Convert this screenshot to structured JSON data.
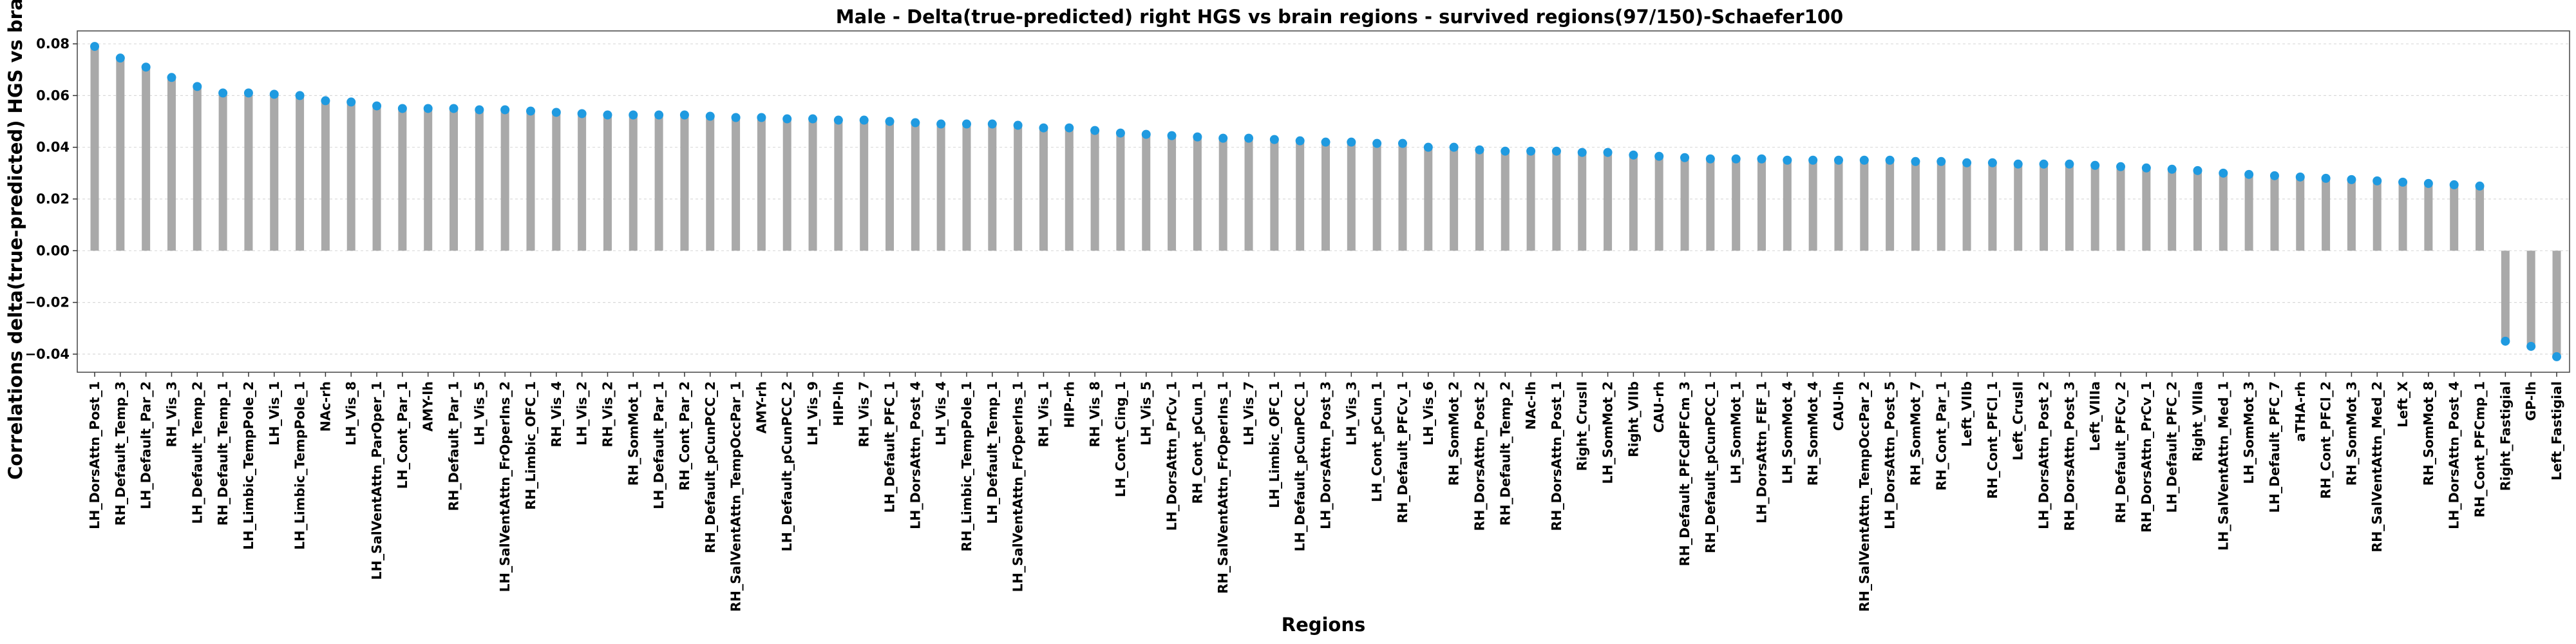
{
  "chart_data": {
    "type": "bar",
    "title": "Male - Delta(true-predicted) right HGS vs brain regions - survived regions(97/150)-Schaefer100",
    "xlabel": "Regions",
    "ylabel": "Correlations delta(true-predicted) HGS vs brain",
    "ylim": [
      -0.047,
      0.085
    ],
    "yticks": [
      -0.04,
      -0.02,
      0.0,
      0.02,
      0.04,
      0.06,
      0.08
    ],
    "ytick_labels": [
      "−0.04",
      "−0.02",
      "0.00",
      "0.02",
      "0.04",
      "0.06",
      "0.08"
    ],
    "grid": true,
    "bar_color": "#a9a9a9",
    "marker_color": "#1f9ae0",
    "categories": [
      "LH_DorsAttn_Post_1",
      "RH_Default_Temp_3",
      "LH_Default_Par_2",
      "RH_Vis_3",
      "LH_Default_Temp_2",
      "RH_Default_Temp_1",
      "LH_Limbic_TempPole_2",
      "LH_Vis_1",
      "LH_Limbic_TempPole_1",
      "NAc-rh",
      "LH_Vis_8",
      "LH_SalVentAttn_ParOper_1",
      "LH_Cont_Par_1",
      "AMY-lh",
      "RH_Default_Par_1",
      "LH_Vis_5",
      "LH_SalVentAttn_FrOperIns_2",
      "RH_Limbic_OFC_1",
      "RH_Vis_4",
      "LH_Vis_2",
      "RH_Vis_2",
      "RH_SomMot_1",
      "LH_Default_Par_1",
      "RH_Cont_Par_2",
      "RH_Default_pCunPCC_2",
      "RH_SalVentAttn_TempOccPar_1",
      "AMY-rh",
      "LH_Default_pCunPCC_2",
      "LH_Vis_9",
      "HIP-lh",
      "RH_Vis_7",
      "LH_Default_PFC_1",
      "LH_DorsAttn_Post_4",
      "LH_Vis_4",
      "RH_Limbic_TempPole_1",
      "LH_Default_Temp_1",
      "LH_SalVentAttn_FrOperIns_1",
      "RH_Vis_1",
      "HIP-rh",
      "RH_Vis_8",
      "LH_Cont_Cing_1",
      "LH_Vis_5",
      "LH_DorsAttn_PrCv_1",
      "RH_Cont_pCun_1",
      "RH_SalVentAttn_FrOperIns_1",
      "LH_Vis_7",
      "LH_Limbic_OFC_1",
      "LH_Default_pCunPCC_1",
      "LH_DorsAttn_Post_3",
      "LH_Vis_3",
      "LH_Cont_pCun_1",
      "RH_Default_PFCv_1",
      "LH_Vis_6",
      "RH_SomMot_2",
      "RH_DorsAttn_Post_2",
      "RH_Default_Temp_2",
      "NAc-lh",
      "RH_DorsAttn_Post_1",
      "Right_CrusII",
      "LH_SomMot_2",
      "Right_VIIb",
      "CAU-rh",
      "RH_Default_PFCdPFCm_3",
      "RH_Default_pCunPCC_1",
      "LH_SomMot_1",
      "LH_DorsAttn_FEF_1",
      "LH_SomMot_4",
      "RH_SomMot_4",
      "CAU-lh",
      "RH_SalVentAttn_TempOccPar_2",
      "LH_DorsAttn_Post_5",
      "RH_SomMot_7",
      "RH_Cont_Par_1",
      "Left_VIIb",
      "RH_Cont_PFCl_1",
      "Left_CrusII",
      "LH_DorsAttn_Post_2",
      "RH_DorsAttn_Post_3",
      "Left_VIIIa",
      "RH_Default_PFCv_2",
      "RH_DorsAttn_PrCv_1",
      "LH_Default_PFC_2",
      "Right_VIIIa",
      "LH_SalVentAttn_Med_1",
      "LH_SomMot_3",
      "LH_Default_PFC_7",
      "aTHA-rh",
      "RH_Cont_PFCl_2",
      "RH_SomMot_3",
      "RH_SalVentAttn_Med_2",
      "Left_X",
      "RH_SomMot_8",
      "LH_DorsAttn_Post_4",
      "RH_Cont_PFCmp_1",
      "Right_Fastigial",
      "GP-lh",
      "Left_Fastigial"
    ],
    "values": [
      0.079,
      0.0745,
      0.071,
      0.067,
      0.0635,
      0.061,
      0.061,
      0.0605,
      0.06,
      0.058,
      0.0575,
      0.056,
      0.055,
      0.055,
      0.055,
      0.0545,
      0.0545,
      0.054,
      0.0535,
      0.053,
      0.0525,
      0.0525,
      0.0525,
      0.0525,
      0.052,
      0.0515,
      0.0515,
      0.051,
      0.051,
      0.0505,
      0.0505,
      0.05,
      0.0495,
      0.049,
      0.049,
      0.049,
      0.0485,
      0.0475,
      0.0475,
      0.0465,
      0.0455,
      0.045,
      0.0445,
      0.044,
      0.0435,
      0.0435,
      0.043,
      0.0425,
      0.042,
      0.042,
      0.0415,
      0.0415,
      0.04,
      0.04,
      0.039,
      0.0385,
      0.0385,
      0.0385,
      0.038,
      0.038,
      0.037,
      0.0365,
      0.036,
      0.0355,
      0.0355,
      0.0355,
      0.035,
      0.035,
      0.035,
      0.035,
      0.035,
      0.0345,
      0.0345,
      0.034,
      0.034,
      0.0335,
      0.0335,
      0.0335,
      0.033,
      0.0325,
      0.032,
      0.0315,
      0.031,
      0.03,
      0.0295,
      0.029,
      0.0285,
      0.028,
      0.0275,
      0.027,
      0.0265,
      0.026,
      0.0255,
      0.025,
      -0.035,
      -0.037,
      -0.041
    ]
  }
}
